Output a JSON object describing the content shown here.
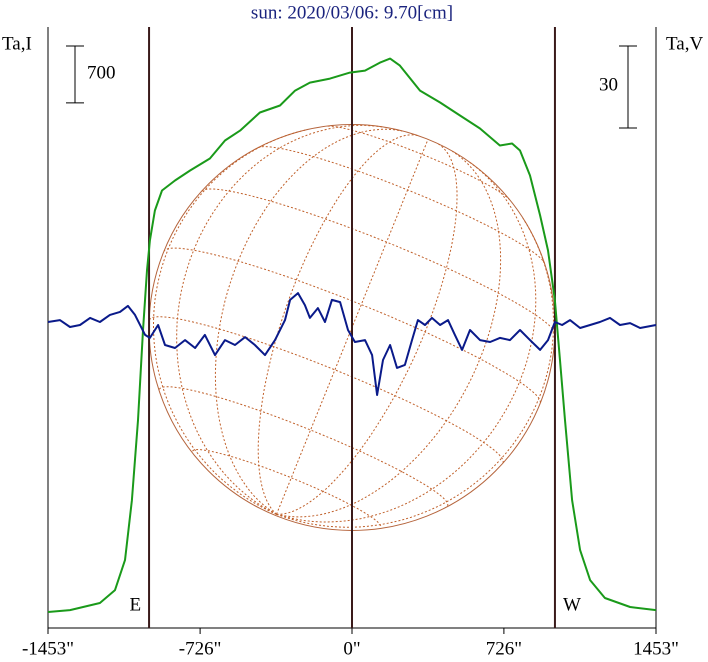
{
  "chart_data": {
    "type": "line",
    "title": "sun: 2020/03/06: 9.70[cm]",
    "ylabel": "Ta,I",
    "y2label": "Ta,V",
    "xlim": [
      -1453,
      1453
    ],
    "xticks": [
      {
        "value": -1453,
        "label": "-1453\""
      },
      {
        "value": -726,
        "label": "-726\""
      },
      {
        "value": 0,
        "label": "0\""
      },
      {
        "value": 726,
        "label": "726\""
      },
      {
        "value": 1453,
        "label": "1453\""
      }
    ],
    "ylim": [
      0,
      7400
    ],
    "y2lim": [
      -110,
      110
    ],
    "vlines": [
      {
        "x": -970,
        "label": "E"
      },
      {
        "x": 0
      },
      {
        "x": 970,
        "label": "W"
      }
    ],
    "scale_bars": [
      {
        "value": 700,
        "axis": "y"
      },
      {
        "value": 30,
        "axis": "y2"
      }
    ],
    "series": [
      {
        "name": "Ta,I",
        "color": "#1a9a1a",
        "x": [
          -1453,
          -1348,
          -1205,
          -1133,
          -1085,
          -1052,
          -1023,
          -999,
          -980,
          -966,
          -942,
          -908,
          -846,
          -774,
          -679,
          -607,
          -535,
          -440,
          -344,
          -272,
          -201,
          -105,
          -10,
          62,
          134,
          182,
          229,
          325,
          421,
          516,
          612,
          707,
          765,
          803,
          851,
          899,
          937,
          970,
          994,
          1018,
          1052,
          1090,
          1138,
          1209,
          1329,
          1453
        ],
        "values": [
          197,
          221,
          308,
          467,
          836,
          1574,
          2558,
          3665,
          4403,
          4772,
          5141,
          5387,
          5510,
          5633,
          5781,
          6002,
          6125,
          6347,
          6433,
          6617,
          6716,
          6765,
          6839,
          6863,
          6962,
          7011,
          6925,
          6617,
          6470,
          6310,
          6150,
          5941,
          5966,
          5879,
          5572,
          5080,
          4649,
          4034,
          3296,
          2558,
          1574,
          959,
          590,
          369,
          258,
          221
        ]
      },
      {
        "name": "Ta,V",
        "color": "#0a1a8a",
        "axis": "y2",
        "x": [
          -1453,
          -1396,
          -1348,
          -1300,
          -1252,
          -1205,
          -1157,
          -1109,
          -1071,
          -1037,
          -989,
          -966,
          -927,
          -894,
          -846,
          -798,
          -750,
          -703,
          -655,
          -607,
          -559,
          -511,
          -464,
          -416,
          -368,
          -320,
          -296,
          -258,
          -225,
          -201,
          -163,
          -129,
          -96,
          -57,
          -19,
          14,
          62,
          96,
          120,
          148,
          182,
          215,
          253,
          287,
          315,
          349,
          382,
          421,
          459,
          492,
          526,
          564,
          612,
          660,
          707,
          755,
          803,
          851,
          899,
          937,
          970,
          1004,
          1042,
          1090,
          1138,
          1185,
          1233,
          1281,
          1329,
          1377,
          1453
        ],
        "values": [
          2.0,
          2.7,
          0.2,
          0.9,
          3.5,
          2.0,
          4.6,
          5.7,
          7.9,
          4.6,
          -2.7,
          -3.8,
          0.9,
          -6.4,
          -7.5,
          -4.6,
          -7.5,
          -2.7,
          -10.1,
          -4.6,
          -6.4,
          -3.5,
          -6.4,
          -10.1,
          -4.6,
          2.7,
          10.1,
          12.6,
          8.2,
          3.5,
          7.1,
          2.0,
          10.1,
          9.3,
          -0.9,
          -5.3,
          -4.6,
          -10.1,
          -24.7,
          -11.9,
          -6.4,
          -14.8,
          -13.7,
          -4.6,
          2.7,
          0.9,
          3.5,
          0.9,
          2.7,
          -2.7,
          -8.2,
          -0.9,
          -4.6,
          -5.3,
          -3.8,
          -4.6,
          -0.9,
          -4.6,
          -8.2,
          -4.6,
          2.0,
          0.9,
          2.7,
          -0.2,
          0.9,
          2.0,
          3.5,
          0.9,
          1.6,
          -0.2,
          0.9
        ]
      }
    ]
  }
}
